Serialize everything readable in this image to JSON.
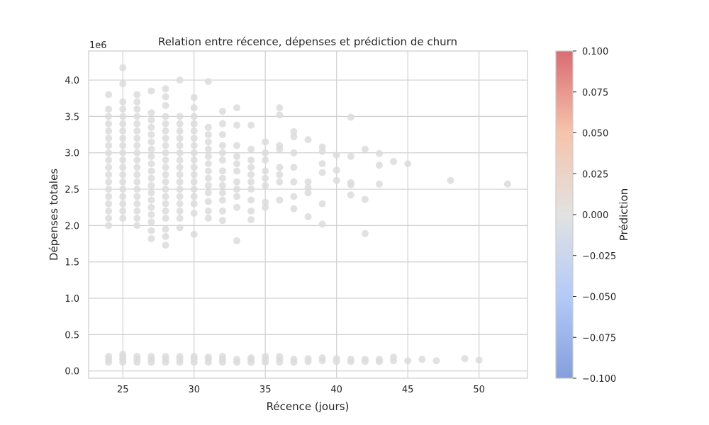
{
  "chart_data": {
    "type": "scatter",
    "title": "Relation entre récence, dépenses et prédiction de churn",
    "xlabel": "Récence (jours)",
    "ylabel": "Dépenses totales",
    "y_offset_label": "1e6",
    "xlim": [
      22.6,
      53.4
    ],
    "ylim": [
      -0.1,
      4.4
    ],
    "x_ticks": [
      "25",
      "30",
      "35",
      "40",
      "45",
      "50"
    ],
    "x_tick_values": [
      25,
      30,
      35,
      40,
      45,
      50
    ],
    "y_ticks": [
      "0.0",
      "0.5",
      "1.0",
      "1.5",
      "2.0",
      "2.5",
      "3.0",
      "3.5",
      "4.0"
    ],
    "y_tick_values": [
      0,
      0.5,
      1.0,
      1.5,
      2.0,
      2.5,
      3.0,
      3.5,
      4.0
    ],
    "grid": true,
    "colorbar": {
      "label": "Prédiction",
      "ticks": [
        "0.100",
        "0.075",
        "0.050",
        "0.025",
        "0.000",
        "−0.025",
        "−0.050",
        "−0.075",
        "−0.100"
      ],
      "tick_values": [
        0.1,
        0.075,
        0.05,
        0.025,
        0.0,
        -0.025,
        -0.05,
        -0.075,
        -0.1
      ],
      "range": [
        -0.1,
        0.1
      ],
      "colormap": [
        "#6f8ed6",
        "#a6c1f7",
        "#dcdddd",
        "#f5b99c",
        "#d2525a"
      ]
    },
    "point_color": "#dcdcdc",
    "upper_cluster": [
      {
        "x": 24,
        "y": [
          2.0,
          2.1,
          2.2,
          2.3,
          2.4,
          2.5,
          2.6,
          2.7,
          2.8,
          2.9,
          3.0,
          3.1,
          3.2,
          3.3,
          3.4,
          3.5,
          3.6,
          3.8
        ]
      },
      {
        "x": 25,
        "y": [
          2.1,
          2.2,
          2.3,
          2.4,
          2.5,
          2.6,
          2.7,
          2.8,
          2.9,
          3.0,
          3.1,
          3.2,
          3.3,
          3.4,
          3.5,
          3.6,
          3.7,
          3.95,
          4.17
        ]
      },
      {
        "x": 26,
        "y": [
          2.0,
          2.1,
          2.2,
          2.3,
          2.4,
          2.5,
          2.6,
          2.7,
          2.8,
          2.9,
          3.0,
          3.1,
          3.2,
          3.3,
          3.4,
          3.5,
          3.6,
          3.7,
          3.8
        ]
      },
      {
        "x": 27,
        "y": [
          1.82,
          1.93,
          2.05,
          2.15,
          2.25,
          2.35,
          2.45,
          2.55,
          2.65,
          2.75,
          2.85,
          2.95,
          3.05,
          3.15,
          3.25,
          3.35,
          3.45,
          3.55,
          3.85
        ]
      },
      {
        "x": 28,
        "y": [
          1.73,
          1.85,
          1.95,
          2.1,
          2.2,
          2.3,
          2.4,
          2.5,
          2.6,
          2.7,
          2.8,
          2.9,
          3.0,
          3.1,
          3.2,
          3.3,
          3.4,
          3.5,
          3.65,
          3.77,
          3.88
        ]
      },
      {
        "x": 29,
        "y": [
          1.97,
          2.1,
          2.2,
          2.3,
          2.4,
          2.5,
          2.6,
          2.7,
          2.8,
          2.9,
          3.0,
          3.1,
          3.2,
          3.3,
          3.4,
          3.5,
          4.0
        ]
      },
      {
        "x": 30,
        "y": [
          1.88,
          2.17,
          2.3,
          2.4,
          2.5,
          2.6,
          2.7,
          2.8,
          2.9,
          3.0,
          3.1,
          3.2,
          3.3,
          3.4,
          3.5,
          3.62,
          3.76
        ]
      },
      {
        "x": 31,
        "y": [
          2.1,
          2.2,
          2.33,
          2.45,
          2.55,
          2.65,
          2.75,
          2.85,
          2.95,
          3.05,
          3.15,
          3.25,
          3.35,
          3.98
        ]
      },
      {
        "x": 32,
        "y": [
          2.07,
          2.2,
          2.35,
          2.45,
          2.55,
          2.65,
          2.75,
          2.9,
          3.0,
          3.1,
          3.25,
          3.4,
          3.57
        ]
      },
      {
        "x": 33,
        "y": [
          1.79,
          2.25,
          2.4,
          2.5,
          2.6,
          2.75,
          2.85,
          2.95,
          3.1,
          3.38,
          3.62
        ]
      },
      {
        "x": 34,
        "y": [
          2.08,
          2.2,
          2.35,
          2.5,
          2.6,
          2.7,
          2.8,
          2.9,
          3.05,
          3.38
        ]
      },
      {
        "x": 35,
        "y": [
          2.25,
          2.32,
          2.55,
          2.65,
          2.75,
          2.9,
          3.0,
          3.15
        ]
      },
      {
        "x": 36,
        "y": [
          2.35,
          2.6,
          2.7,
          2.8,
          3.05,
          3.1,
          3.52,
          3.62
        ]
      },
      {
        "x": 37,
        "y": [
          2.23,
          2.4,
          2.6,
          2.8,
          3.0,
          3.22,
          3.29
        ]
      },
      {
        "x": 38,
        "y": [
          2.12,
          2.45,
          2.52,
          2.6,
          3.18
        ]
      },
      {
        "x": 39,
        "y": [
          2.02,
          2.3,
          2.73,
          2.85,
          3.02,
          3.08
        ]
      },
      {
        "x": 40,
        "y": [
          2.62,
          2.76,
          2.97
        ]
      },
      {
        "x": 41,
        "y": [
          2.42,
          2.56,
          2.59,
          2.95,
          3.49
        ]
      },
      {
        "x": 42,
        "y": [
          1.89,
          2.36,
          3.05
        ]
      },
      {
        "x": 43,
        "y": [
          2.57,
          2.83,
          2.99
        ]
      },
      {
        "x": 44,
        "y": [
          2.88
        ]
      },
      {
        "x": 45,
        "y": [
          2.85
        ]
      },
      {
        "x": 48,
        "y": [
          2.62
        ]
      },
      {
        "x": 52,
        "y": [
          2.57
        ]
      }
    ],
    "lower_cluster": [
      {
        "x": 24,
        "y": [
          0.12,
          0.16,
          0.2
        ]
      },
      {
        "x": 25,
        "y": [
          0.12,
          0.16,
          0.2,
          0.23
        ]
      },
      {
        "x": 26,
        "y": [
          0.12,
          0.16,
          0.2
        ]
      },
      {
        "x": 27,
        "y": [
          0.12,
          0.16,
          0.2
        ]
      },
      {
        "x": 28,
        "y": [
          0.12,
          0.16,
          0.2
        ]
      },
      {
        "x": 29,
        "y": [
          0.12,
          0.16,
          0.2
        ]
      },
      {
        "x": 30,
        "y": [
          0.12,
          0.16,
          0.2
        ]
      },
      {
        "x": 31,
        "y": [
          0.12,
          0.16,
          0.19
        ]
      },
      {
        "x": 32,
        "y": [
          0.12,
          0.16,
          0.2
        ]
      },
      {
        "x": 33,
        "y": [
          0.12,
          0.16
        ]
      },
      {
        "x": 34,
        "y": [
          0.12,
          0.16,
          0.18
        ]
      },
      {
        "x": 35,
        "y": [
          0.12,
          0.16,
          0.2
        ]
      },
      {
        "x": 36,
        "y": [
          0.12,
          0.16,
          0.2
        ]
      },
      {
        "x": 37,
        "y": [
          0.12,
          0.16
        ]
      },
      {
        "x": 38,
        "y": [
          0.13,
          0.17
        ]
      },
      {
        "x": 39,
        "y": [
          0.14,
          0.18
        ]
      },
      {
        "x": 40,
        "y": [
          0.13,
          0.17
        ]
      },
      {
        "x": 41,
        "y": [
          0.13,
          0.16
        ]
      },
      {
        "x": 42,
        "y": [
          0.13,
          0.16
        ]
      },
      {
        "x": 43,
        "y": [
          0.13,
          0.16
        ]
      },
      {
        "x": 44,
        "y": [
          0.14,
          0.19
        ]
      },
      {
        "x": 45,
        "y": [
          0.14
        ]
      },
      {
        "x": 46,
        "y": [
          0.16
        ]
      },
      {
        "x": 47,
        "y": [
          0.14
        ]
      },
      {
        "x": 49,
        "y": [
          0.17
        ]
      },
      {
        "x": 50,
        "y": [
          0.15
        ]
      }
    ]
  }
}
